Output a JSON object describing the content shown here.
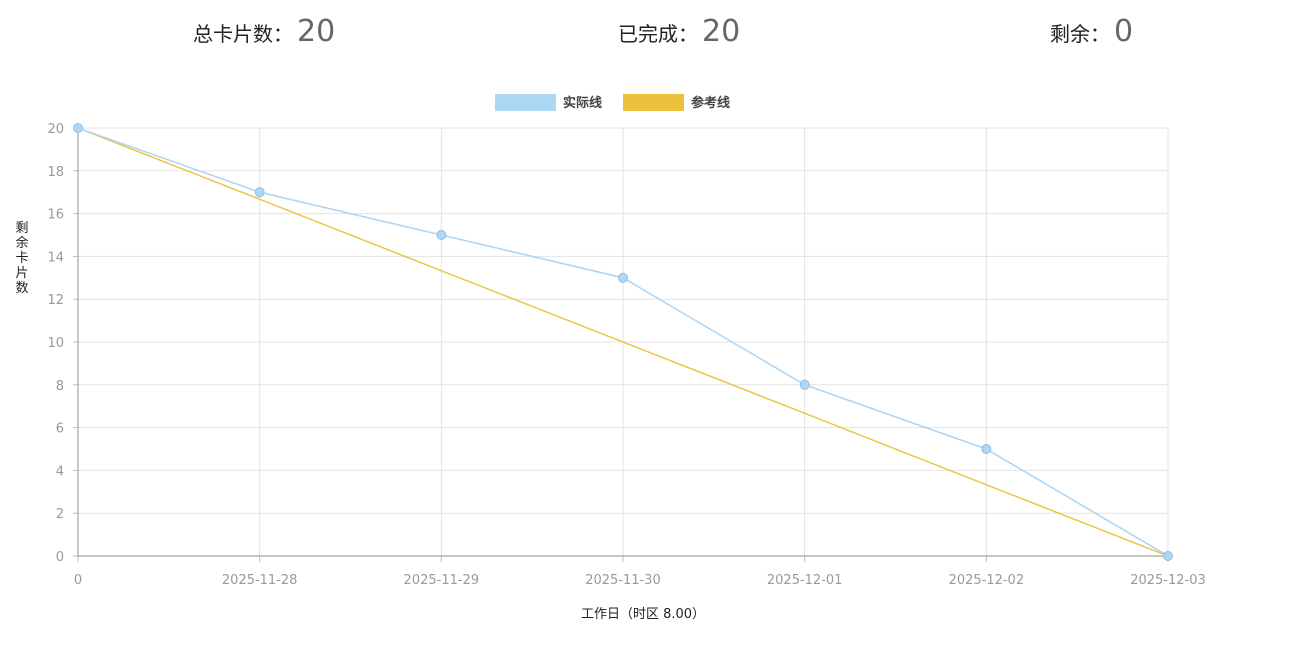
{
  "summary": {
    "total_label": "总卡片数：",
    "total_value": "20",
    "done_label": "已完成：",
    "done_value": "20",
    "rest_label": "剩余：",
    "rest_value": "0"
  },
  "chart_data": {
    "type": "line",
    "categories": [
      "0",
      "2025-11-28",
      "2025-11-29",
      "2025-11-30",
      "2025-12-01",
      "2025-12-02",
      "2025-12-03"
    ],
    "series": [
      {
        "name": "实际线",
        "values": [
          20,
          17,
          15,
          13,
          8,
          5,
          0
        ],
        "color": "#aed6f5",
        "markers": true
      },
      {
        "name": "参考线",
        "values": [
          20,
          16.67,
          13.33,
          10,
          6.67,
          3.33,
          0
        ],
        "color": "#ebc13c",
        "markers": false
      }
    ],
    "xlabel": "工作日（时区 8.00）",
    "ylabel": "剩余卡片数",
    "ylim": [
      0,
      20
    ],
    "yticks": [
      0,
      2,
      4,
      6,
      8,
      10,
      12,
      14,
      16,
      18,
      20
    ],
    "grid": true,
    "legend_position": "top-center"
  }
}
